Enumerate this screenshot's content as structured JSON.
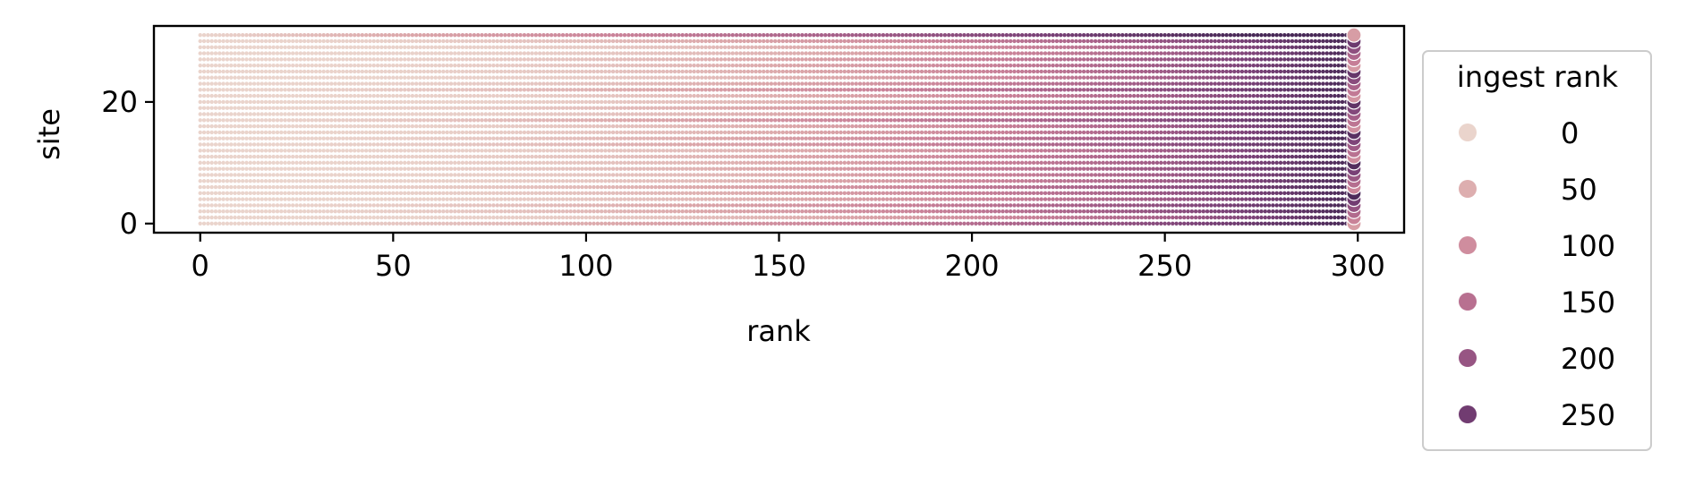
{
  "chart_data": {
    "type": "scatter",
    "xlabel": "rank",
    "ylabel": "site",
    "xlim": [
      -12,
      312
    ],
    "ylim": [
      -1.5,
      32.5
    ],
    "x_ticks": [
      0,
      50,
      100,
      150,
      200,
      250,
      300
    ],
    "y_ticks": [
      0,
      20
    ],
    "grid": false,
    "hue_variable": "ingest rank",
    "hue_range": [
      0,
      299
    ],
    "palette": [
      "#ead4cc",
      "#dba6a9",
      "#c98198",
      "#a76089",
      "#7a4177",
      "#472856"
    ],
    "legend": {
      "title": "ingest rank",
      "entries": [
        "0",
        "50",
        "100",
        "150",
        "200",
        "250"
      ],
      "placement": "outside right"
    },
    "points_description_values": {
      "sites": 32,
      "ranks_per_site": 300,
      "last_rank": 299
    }
  }
}
